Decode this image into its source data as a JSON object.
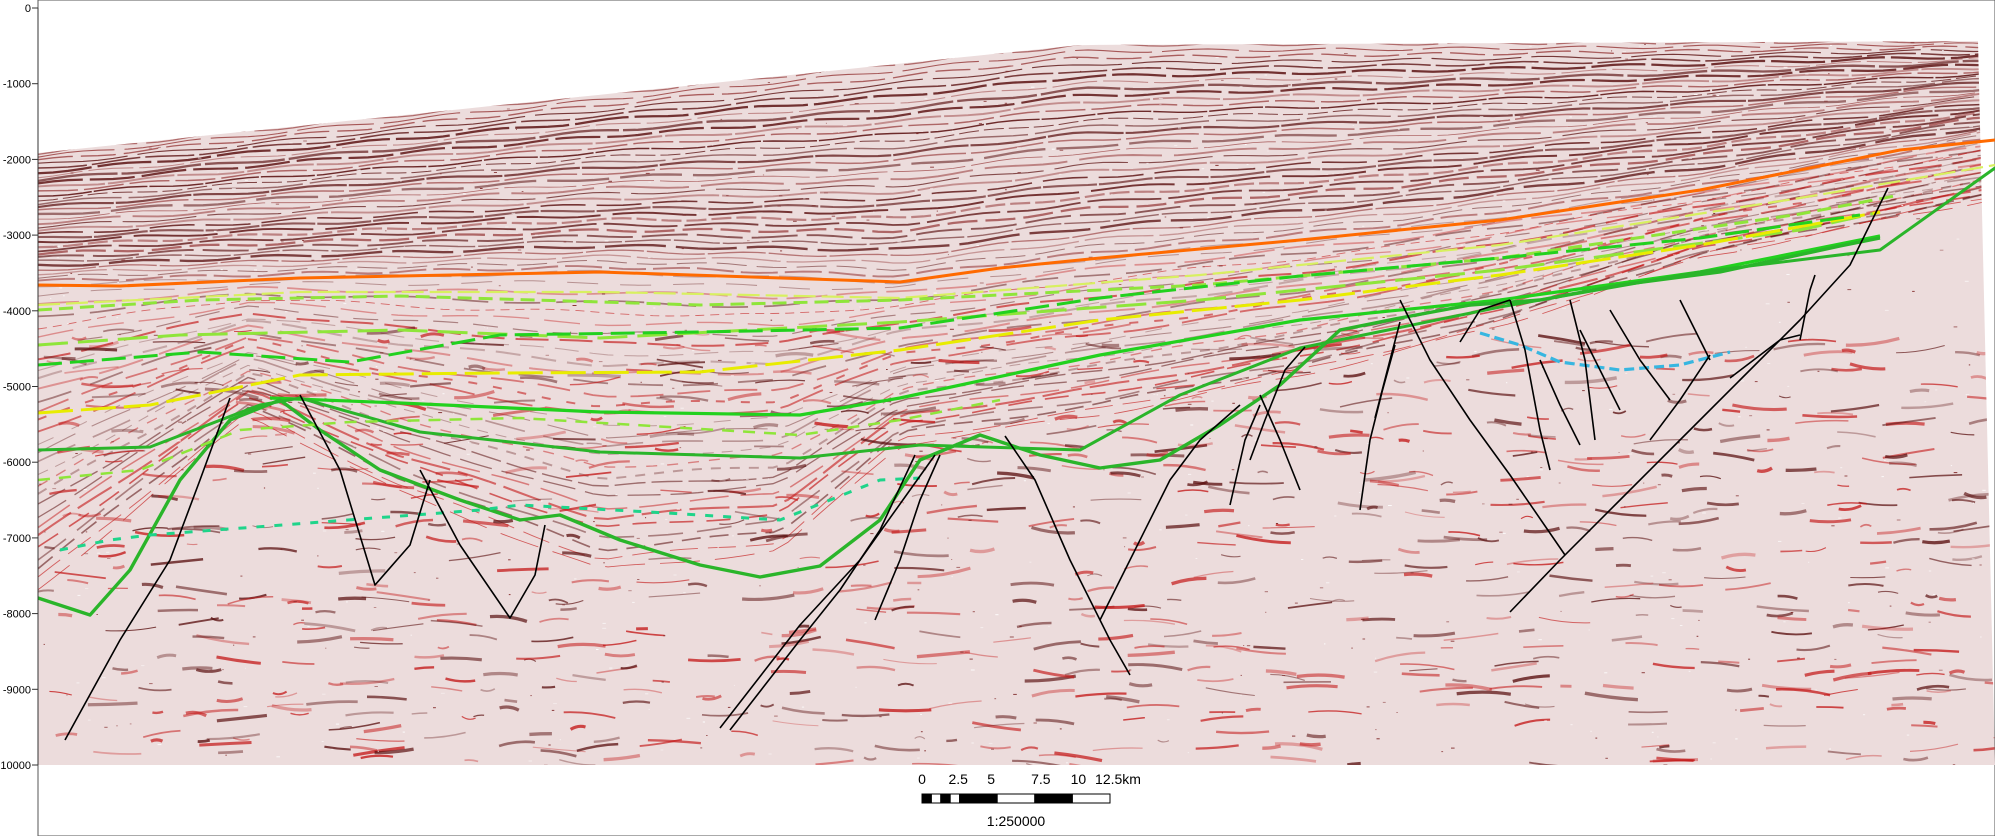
{
  "depth_axis": {
    "ticks": [
      "0",
      "-1000",
      "-2000",
      "-3000",
      "-4000",
      "-5000",
      "-6000",
      "-7000",
      "-8000",
      "-9000",
      "10000"
    ]
  },
  "scale_bar": {
    "labels": [
      "0",
      "2.5",
      "5",
      "7.5",
      "10",
      "12.5km"
    ],
    "ratio": "1:250000"
  },
  "colors": {
    "background": "#ffffff",
    "seismic_dark": "#5a0f0f",
    "seismic_red": "#c41a1a",
    "horizon_orange": "#ff6a00",
    "horizon_pale_yellow": "#d8f060",
    "horizon_lime": "#8fe53a",
    "horizon_yellow": "#e8ec00",
    "horizon_bright_green": "#22d11e",
    "horizon_green": "#2ab52a",
    "horizon_teal": "#1fd48a",
    "horizon_cyan": "#37b6e0",
    "fault_lines": "#000000"
  }
}
